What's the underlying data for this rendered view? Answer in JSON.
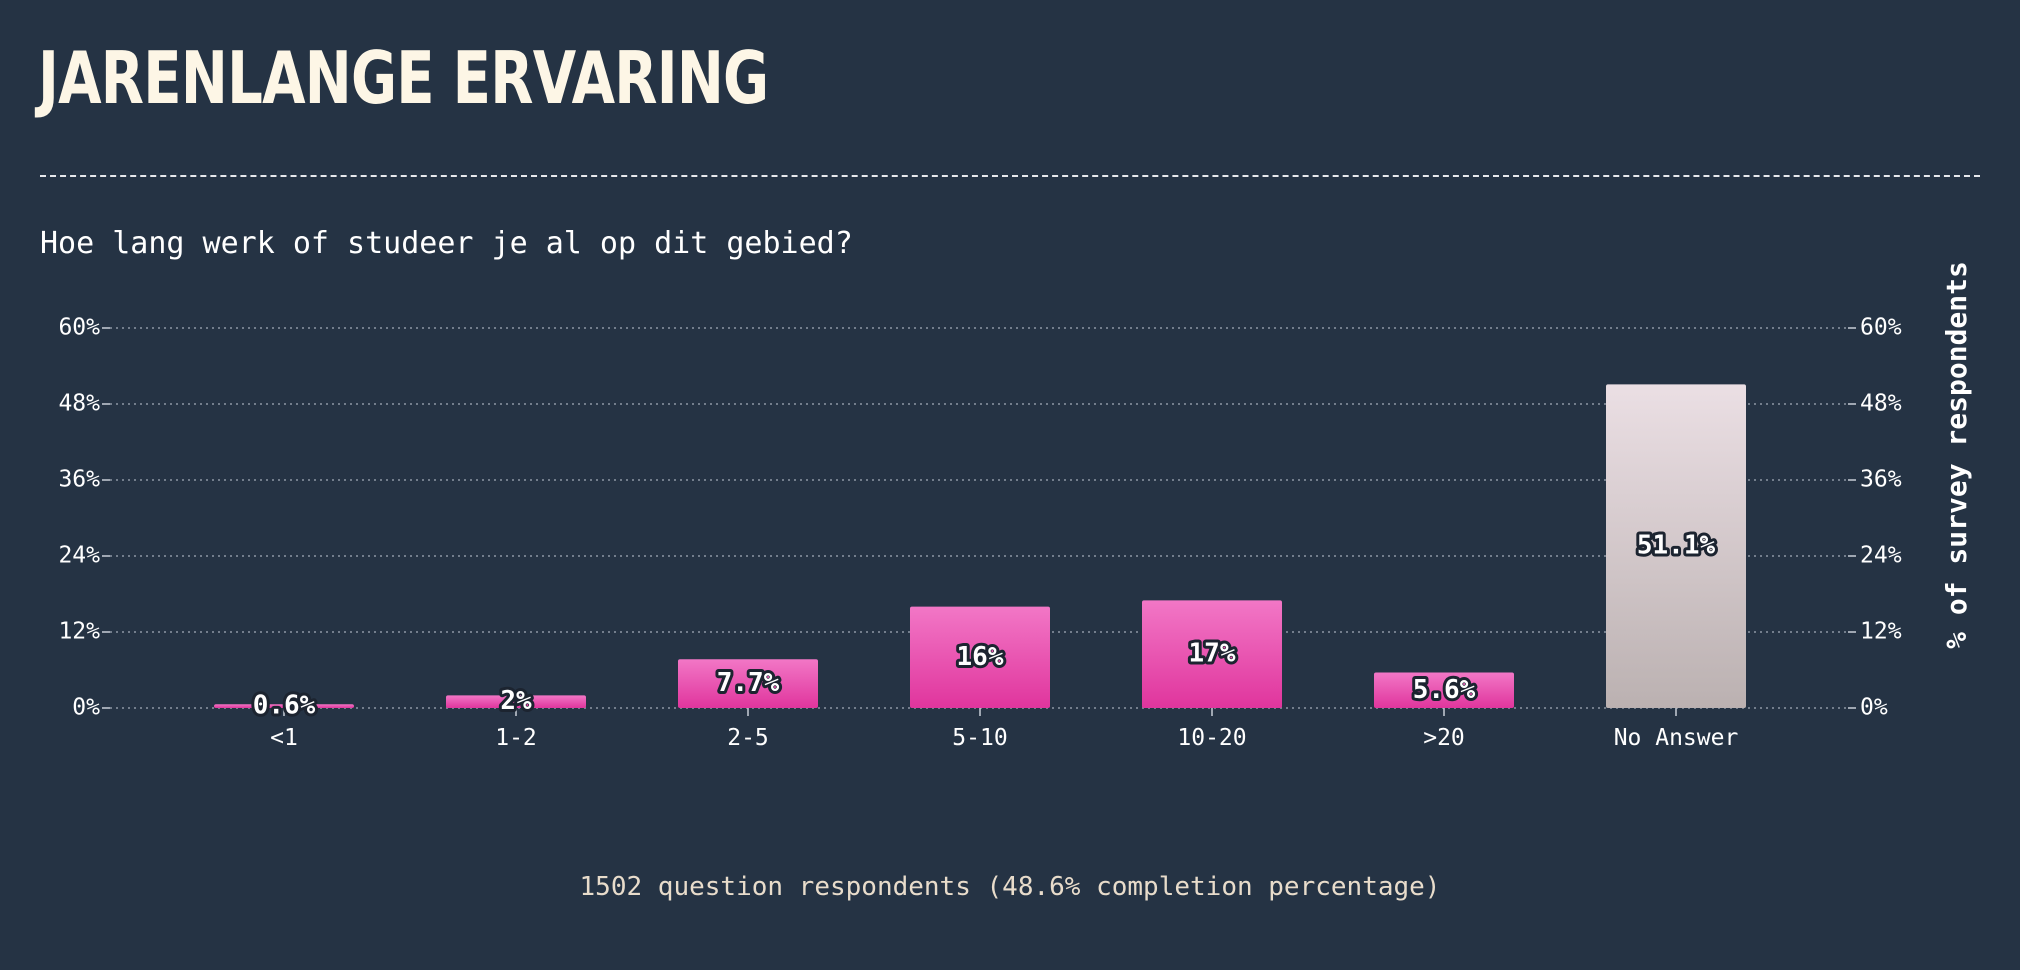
{
  "title": "JARENLANGE ERVARING",
  "question": "Hoe lang werk of studeer je al op dit gebied?",
  "footer": "1502 question respondents (48.6% completion percentage)",
  "colors": {
    "background": "#253344",
    "bar_top": "#f277c6",
    "bar_bottom": "#e0359d",
    "no_answer_top": "#ebdfe4",
    "no_answer_bottom": "#bbb1b1"
  },
  "chart_data": {
    "type": "bar",
    "categories": [
      "<1",
      "1-2",
      "2-5",
      "5-10",
      "10-20",
      ">20",
      "No Answer"
    ],
    "values": [
      0.6,
      2,
      7.7,
      16,
      17,
      5.6,
      51.1
    ],
    "labels": [
      "0.6%",
      "2%",
      "7.7%",
      "16%",
      "17%",
      "5.6%",
      "51.1%"
    ],
    "ylabel": "% of survey respondents",
    "ylim": [
      0,
      60
    ],
    "yticks": [
      0,
      12,
      24,
      36,
      48,
      60
    ],
    "ytick_labels": [
      "0%",
      "12%",
      "24%",
      "36%",
      "48%",
      "60%"
    ],
    "grid": true
  }
}
